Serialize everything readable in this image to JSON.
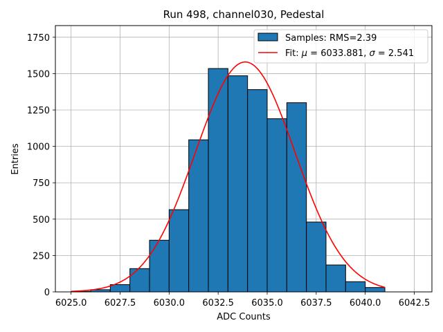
{
  "chart_data": {
    "type": "bar",
    "title": "Run 498, channel030, Pedestal",
    "xlabel": "ADC Counts",
    "ylabel": "Entries",
    "xlim": [
      6024.2,
      6043.4
    ],
    "ylim": [
      0,
      1830
    ],
    "xticks": [
      6025.0,
      6027.5,
      6030.0,
      6032.5,
      6035.0,
      6037.5,
      6040.0,
      6042.5
    ],
    "xtick_labels": [
      "6025.0",
      "6027.5",
      "6030.0",
      "6032.5",
      "6035.0",
      "6037.5",
      "6040.0",
      "6042.5"
    ],
    "yticks": [
      0,
      250,
      500,
      750,
      1000,
      1250,
      1500,
      1750
    ],
    "ytick_labels": [
      "0",
      "250",
      "500",
      "750",
      "1000",
      "1250",
      "1500",
      "1750"
    ],
    "grid": true,
    "histogram": {
      "name": "Samples: RMS=2.39",
      "color": "#1f77b4",
      "bin_edges": [
        6025,
        6026,
        6027,
        6028,
        6029,
        6030,
        6031,
        6032,
        6033,
        6034,
        6035,
        6036,
        6037,
        6038,
        6039,
        6040,
        6041
      ],
      "counts": [
        3,
        15,
        50,
        160,
        355,
        565,
        1045,
        1535,
        1485,
        1390,
        1190,
        1300,
        480,
        185,
        70,
        30
      ]
    },
    "fit": {
      "name": "Fit: μ = 6033.881, σ = 2.541",
      "color": "#ff0000",
      "mu": 6033.881,
      "sigma": 2.541,
      "amplitude": 1580,
      "x_range": [
        6025,
        6041
      ]
    },
    "legend": {
      "placement": "top-right",
      "entries": [
        {
          "label": "Samples: RMS=2.39",
          "kind": "patch",
          "color": "#1f77b4"
        },
        {
          "label_prefix": "Fit: ",
          "mu_symbol": "μ",
          "mu_text": " = 6033.881, ",
          "sigma_symbol": "σ",
          "sigma_text": " = 2.541",
          "kind": "line",
          "color": "#ff0000"
        }
      ]
    }
  }
}
